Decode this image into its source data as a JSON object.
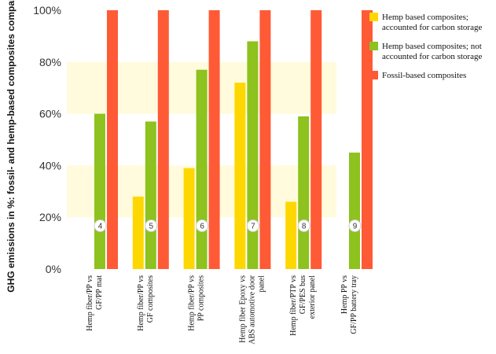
{
  "chart_data": {
    "type": "bar",
    "ylabel": "GHG emissions in %: fossil- and hemp-based composites compared",
    "ylim": [
      0,
      100
    ],
    "yticks": [
      "0%",
      "20%",
      "40%",
      "60%",
      "80%",
      "100%"
    ],
    "categories": [
      {
        "lines": [
          "Hemp fiber/PP vs",
          "GF/PP mat"
        ],
        "badge": "4"
      },
      {
        "lines": [
          "Hemp fiber/PP vs",
          "GF composites"
        ],
        "badge": "5"
      },
      {
        "lines": [
          "Hemp fiber/PP vs",
          "PP composites"
        ],
        "badge": "6"
      },
      {
        "lines": [
          "Hemp fiber Epoxy vs",
          "ABS automotive door",
          "panel"
        ],
        "badge": "7"
      },
      {
        "lines": [
          "Hemp fiber/PTP vs",
          "GF/PES bus",
          "exterior panel"
        ],
        "badge": "8"
      },
      {
        "lines": [
          "Hemp PP vs",
          "GF/PP battery tray"
        ],
        "badge": "9"
      }
    ],
    "series": [
      {
        "name_lines": [
          "Hemp based composites;",
          "accounted for carbon storage"
        ],
        "color": "#FFD700",
        "values": [
          0,
          28,
          39,
          72,
          26,
          0
        ]
      },
      {
        "name_lines": [
          "Hemp based composites; not",
          "accounted for carbon storage"
        ],
        "color": "#8DC21F",
        "values": [
          60,
          57,
          77,
          88,
          59,
          45
        ]
      },
      {
        "name_lines": [
          "Fossil-based composites"
        ],
        "color": "#FF5A36",
        "values": [
          100,
          100,
          100,
          100,
          100,
          100
        ]
      }
    ],
    "legend_position": "top-right",
    "band_color": "#FFFBDC"
  }
}
